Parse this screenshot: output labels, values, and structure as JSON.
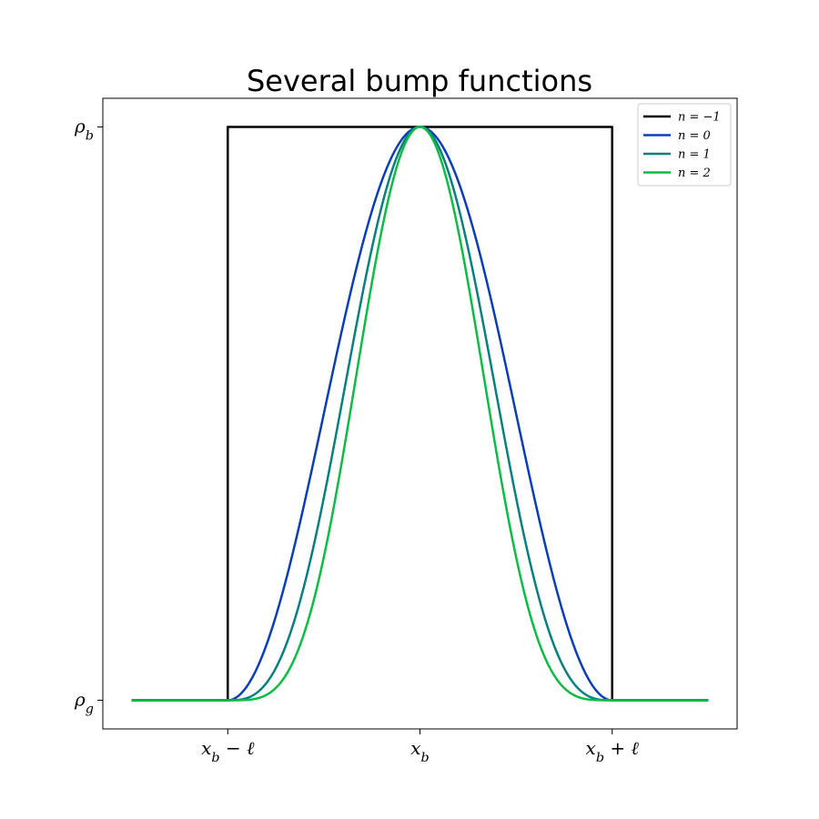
{
  "chart_data": {
    "type": "line",
    "title": "Several bump functions",
    "xlabel": "",
    "ylabel": "",
    "xlim": [
      -1.65,
      1.65
    ],
    "ylim": [
      -0.05,
      1.05
    ],
    "x_range": [
      -1.5,
      1.5
    ],
    "xticks": [
      {
        "value": -1,
        "label": "x_b − ℓ"
      },
      {
        "value": 0,
        "label": "x_b"
      },
      {
        "value": 1,
        "label": "x_b + ℓ"
      }
    ],
    "yticks": [
      {
        "value": 0,
        "label": "ρ_g"
      },
      {
        "value": 1,
        "label": "ρ_b"
      }
    ],
    "grid": false,
    "legend_position": "top-right",
    "series": [
      {
        "name": "n = −1",
        "n": -1,
        "color": "#000000"
      },
      {
        "name": "n = 0",
        "n": 0,
        "color": "#0a3eb8"
      },
      {
        "name": "n = 1",
        "n": 1,
        "color": "#0a7f7f"
      },
      {
        "name": "n = 2",
        "n": 2,
        "color": "#0cbc45"
      }
    ]
  }
}
